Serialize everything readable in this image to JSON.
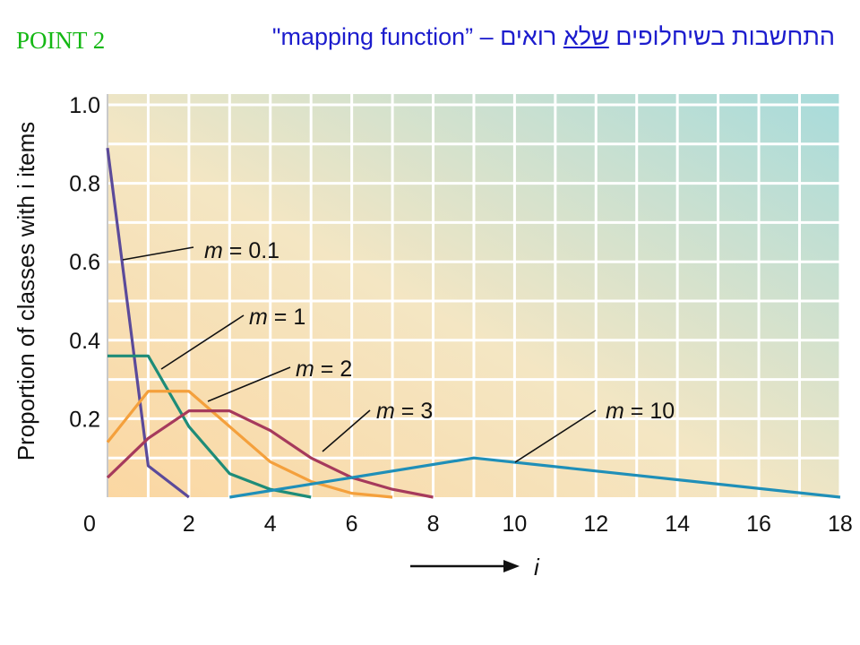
{
  "slide": {
    "point_label": "POINT 2",
    "title_part1": "התחשבות בשיחלופים ",
    "title_underlined": "שלא",
    "title_part2": " רואים – ”mapping function\""
  },
  "colors": {
    "m_0_1": "#5b4a9a",
    "m_1": "#1e8c78",
    "m_2": "#f4a03c",
    "m_3": "#a63a5c",
    "m_10": "#1f8fb8",
    "grid": "#ffffff",
    "bg_warm": "#fbdca8",
    "bg_cool": "#a9dcdc"
  },
  "chart_data": {
    "type": "line",
    "xlabel": "i",
    "ylabel": "Proportion of classes with i items",
    "xlim": [
      0,
      18
    ],
    "ylim": [
      0,
      1.0
    ],
    "x_ticks": [
      "0",
      "2",
      "4",
      "6",
      "8",
      "10",
      "12",
      "14",
      "16",
      "18"
    ],
    "y_ticks": [
      "0.2",
      "0.4",
      "0.6",
      "0.8",
      "1.0"
    ],
    "grid": true,
    "series": [
      {
        "name": "m = 0.1",
        "color_key": "m_0_1",
        "x": [
          0,
          1,
          2
        ],
        "y": [
          0.89,
          0.08,
          0.0
        ]
      },
      {
        "name": "m = 1",
        "color_key": "m_1",
        "x": [
          0,
          1,
          2,
          3,
          4,
          5
        ],
        "y": [
          0.36,
          0.36,
          0.18,
          0.06,
          0.02,
          0.0
        ]
      },
      {
        "name": "m = 2",
        "color_key": "m_2",
        "x": [
          0,
          1,
          2,
          3,
          4,
          5,
          6,
          7
        ],
        "y": [
          0.14,
          0.27,
          0.27,
          0.18,
          0.09,
          0.04,
          0.01,
          0.0
        ]
      },
      {
        "name": "m = 3",
        "color_key": "m_3",
        "x": [
          0,
          1,
          2,
          3,
          4,
          5,
          6,
          7,
          8
        ],
        "y": [
          0.05,
          0.15,
          0.22,
          0.22,
          0.17,
          0.1,
          0.05,
          0.02,
          0.0
        ]
      },
      {
        "name": "m = 10",
        "color_key": "m_10",
        "x": [
          3,
          9,
          18
        ],
        "y": [
          0.0,
          0.1,
          0.0
        ]
      }
    ]
  }
}
